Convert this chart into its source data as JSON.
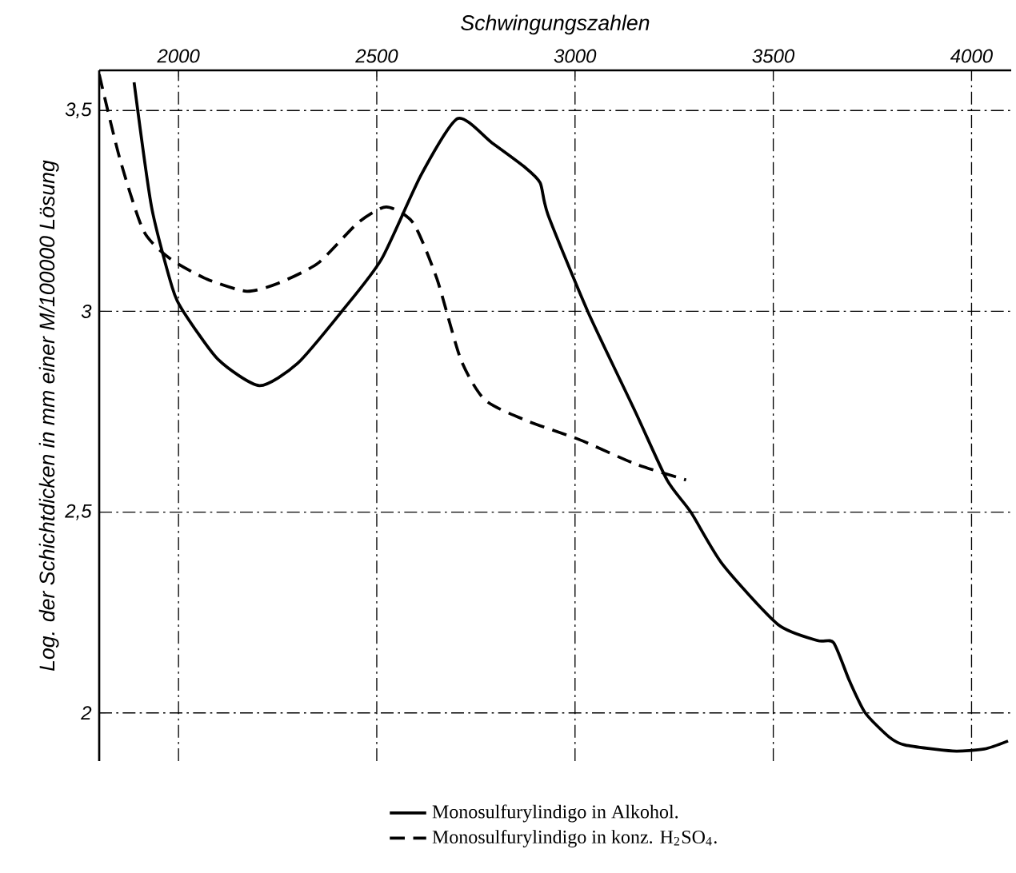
{
  "chart_data": {
    "type": "line",
    "xlabel": "Schwingungszahlen",
    "ylabel": "Log. der Schichtdicken in mm einer M/100000 Lösung",
    "xlim": [
      1800,
      4100
    ],
    "xticks": [
      2000,
      2500,
      3000,
      3500,
      4000
    ],
    "ylim": [
      1.88,
      3.6
    ],
    "yticks": [
      {
        "value": 2,
        "label": "2"
      },
      {
        "value": 2.5,
        "label": "2,5"
      },
      {
        "value": 3,
        "label": "3"
      },
      {
        "value": 3.5,
        "label": "3,5"
      }
    ],
    "grid": true,
    "legend": "bottom",
    "series": [
      {
        "name": "Monosulfurylindigo in Alkohol.",
        "color": "#000000",
        "line_style": "solid",
        "x": [
          1888,
          1932,
          1984,
          2012,
          2100,
          2204,
          2300,
          2412,
          2512,
          2612,
          2704,
          2790,
          2872,
          2912,
          2932,
          3032,
          3152,
          3232,
          3292,
          3372,
          3512,
          3612,
          3652,
          3692,
          3732,
          3792,
          3832,
          3952,
          4032,
          4092
        ],
        "values": [
          3.57,
          3.26,
          3.06,
          3.0,
          2.88,
          2.815,
          2.87,
          3.0,
          3.13,
          3.34,
          3.48,
          3.42,
          3.36,
          3.32,
          3.24,
          3.0,
          2.75,
          2.58,
          2.5,
          2.37,
          2.22,
          2.18,
          2.175,
          2.08,
          2.0,
          1.94,
          1.92,
          1.905,
          1.91,
          1.93
        ]
      },
      {
        "name": "Monosulfurylindigo in konz. H$_{2}$SO$_{4}$.",
        "color": "#000000",
        "line_style": "dashed",
        "x": [
          1800,
          1852,
          1912,
          1980,
          2072,
          2172,
          2252,
          2352,
          2452,
          2524,
          2592,
          2652,
          2712,
          2772,
          2872,
          3012,
          3152,
          3280
        ],
        "values": [
          3.59,
          3.38,
          3.2,
          3.13,
          3.08,
          3.05,
          3.07,
          3.12,
          3.22,
          3.26,
          3.22,
          3.08,
          2.88,
          2.78,
          2.73,
          2.68,
          2.62,
          2.58
        ]
      }
    ]
  }
}
